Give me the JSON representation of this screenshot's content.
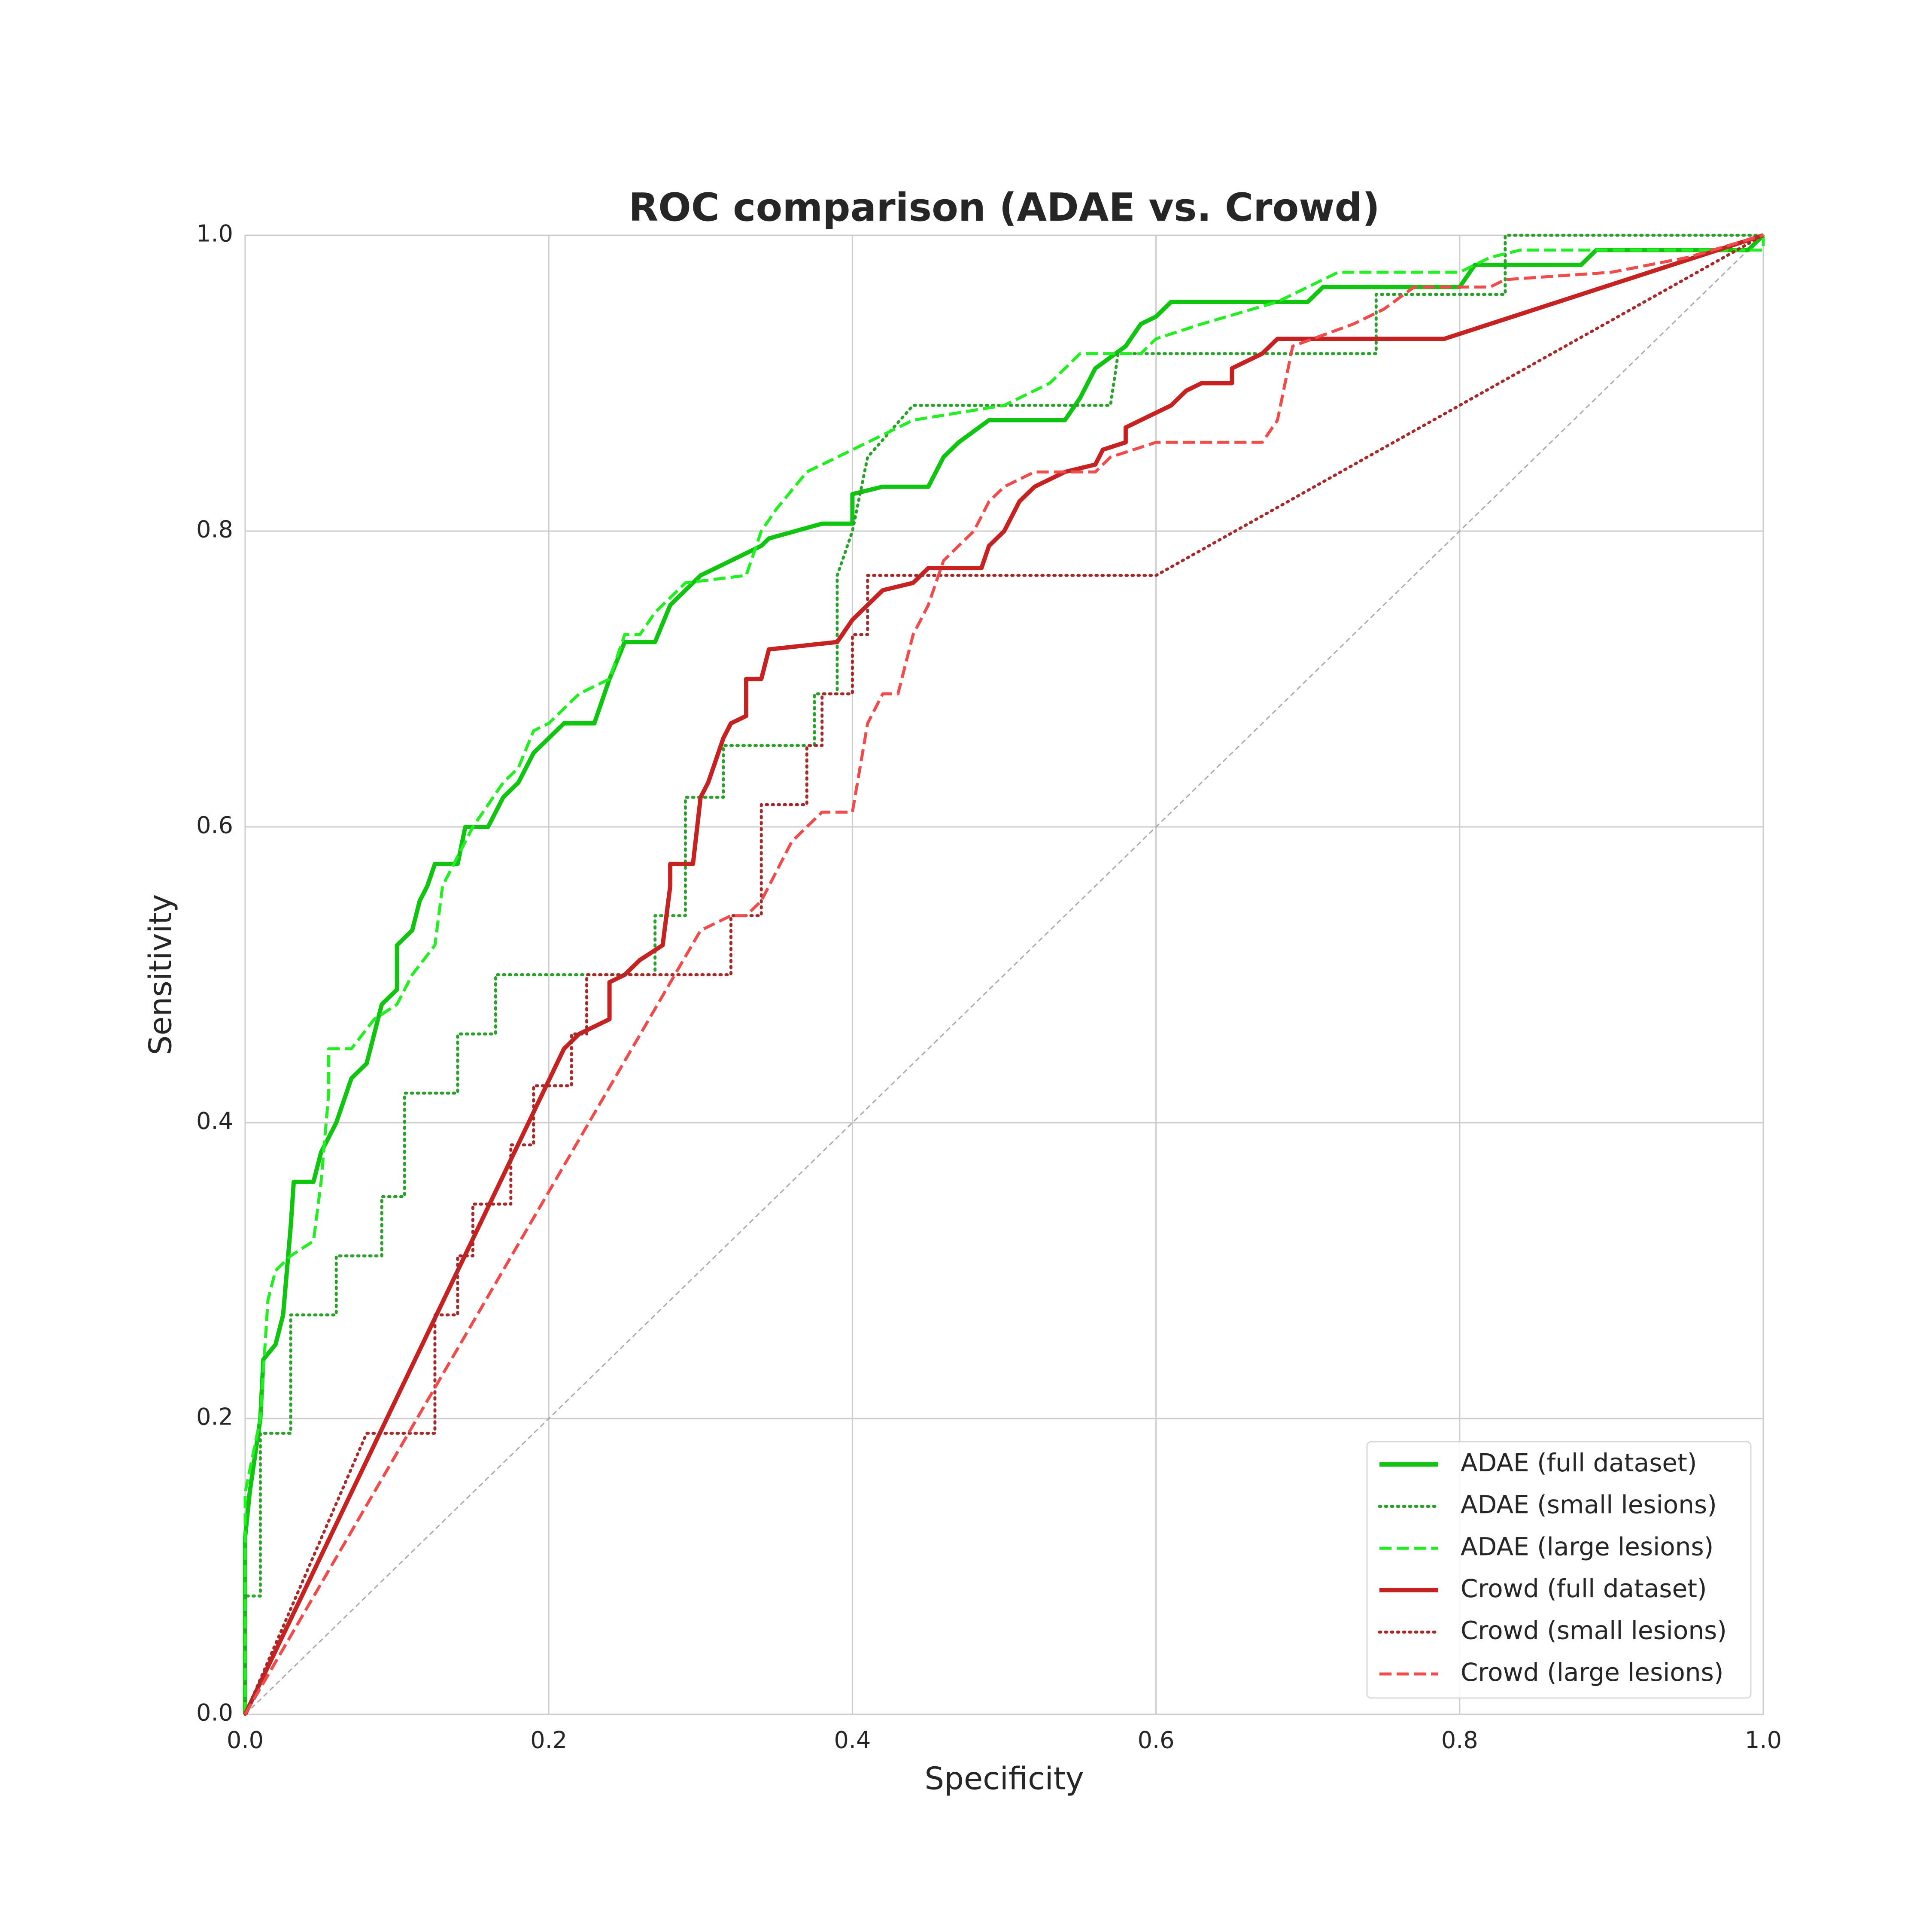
{
  "chart_data": {
    "type": "line",
    "title": "ROC comparison (ADAE vs. Crowd)",
    "x_label": "Specificity",
    "y_label": "Sensitivity",
    "xlim": [
      0,
      1
    ],
    "ylim": [
      0,
      1
    ],
    "xticks": [
      {
        "value": 0,
        "label": "0.0"
      },
      0.2,
      0.4,
      0.6,
      0.8,
      {
        "value": 1,
        "label": "1.0"
      }
    ],
    "yticks": [
      {
        "value": 0,
        "label": "0.0"
      },
      0.2,
      0.4,
      0.6,
      0.8,
      {
        "value": 1,
        "label": "1.0"
      }
    ],
    "grid": true,
    "legend": "lower right",
    "series": [
      {
        "name": "ADAE (full dataset)",
        "color": "#11c411",
        "linestyle": "solid",
        "x": [
          0,
          0,
          0.003,
          0.01,
          0.012,
          0.02,
          0.025,
          0.03,
          0.032,
          0.045,
          0.05,
          0.06,
          0.07,
          0.08,
          0.085,
          0.09,
          0.1,
          0.1,
          0.11,
          0.115,
          0.12,
          0.125,
          0.14,
          0.145,
          0.16,
          0.17,
          0.18,
          0.19,
          0.2,
          0.21,
          0.23,
          0.24,
          0.25,
          0.27,
          0.28,
          0.29,
          0.3,
          0.32,
          0.34,
          0.345,
          0.38,
          0.4,
          0.4,
          0.42,
          0.45,
          0.46,
          0.47,
          0.49,
          0.54,
          0.55,
          0.56,
          0.58,
          0.59,
          0.6,
          0.61,
          0.7,
          0.71,
          0.8,
          0.81,
          0.88,
          0.89,
          0.99,
          1
        ],
        "y": [
          0,
          0.12,
          0.15,
          0.2,
          0.24,
          0.25,
          0.27,
          0.33,
          0.36,
          0.36,
          0.38,
          0.4,
          0.43,
          0.44,
          0.46,
          0.48,
          0.49,
          0.52,
          0.53,
          0.55,
          0.56,
          0.575,
          0.575,
          0.6,
          0.6,
          0.62,
          0.63,
          0.65,
          0.66,
          0.67,
          0.67,
          0.7,
          0.725,
          0.725,
          0.75,
          0.76,
          0.77,
          0.78,
          0.79,
          0.795,
          0.805,
          0.805,
          0.825,
          0.83,
          0.83,
          0.85,
          0.86,
          0.875,
          0.875,
          0.89,
          0.91,
          0.925,
          0.94,
          0.945,
          0.955,
          0.955,
          0.965,
          0.965,
          0.98,
          0.98,
          0.99,
          0.99,
          1
        ]
      },
      {
        "name": "ADAE (small lesions)",
        "color": "#2ca02c",
        "linestyle": "dotted",
        "x": [
          0,
          0,
          0.01,
          0.01,
          0.03,
          0.03,
          0.06,
          0.06,
          0.09,
          0.09,
          0.105,
          0.105,
          0.14,
          0.14,
          0.165,
          0.165,
          0.27,
          0.27,
          0.29,
          0.29,
          0.315,
          0.315,
          0.375,
          0.375,
          0.39,
          0.39,
          0.4,
          0.41,
          0.44,
          0.57,
          0.575,
          0.745,
          0.745,
          0.83,
          0.83,
          1
        ],
        "y": [
          0,
          0.08,
          0.08,
          0.19,
          0.19,
          0.27,
          0.27,
          0.31,
          0.31,
          0.35,
          0.35,
          0.42,
          0.42,
          0.46,
          0.46,
          0.5,
          0.5,
          0.54,
          0.54,
          0.62,
          0.62,
          0.655,
          0.655,
          0.69,
          0.69,
          0.77,
          0.8,
          0.85,
          0.885,
          0.885,
          0.92,
          0.92,
          0.96,
          0.96,
          1,
          1
        ]
      },
      {
        "name": "ADAE (large lesions)",
        "color": "#22ee22",
        "linestyle": "dashed",
        "x": [
          0,
          0,
          0.01,
          0.015,
          0.02,
          0.03,
          0.045,
          0.05,
          0.055,
          0.055,
          0.07,
          0.085,
          0.1,
          0.11,
          0.125,
          0.13,
          0.14,
          0.15,
          0.17,
          0.18,
          0.19,
          0.2,
          0.22,
          0.24,
          0.25,
          0.26,
          0.27,
          0.29,
          0.33,
          0.34,
          0.35,
          0.37,
          0.39,
          0.42,
          0.44,
          0.5,
          0.53,
          0.55,
          0.59,
          0.6,
          0.63,
          0.68,
          0.72,
          0.8,
          0.82,
          0.84,
          1,
          1
        ],
        "y": [
          0,
          0.15,
          0.2,
          0.28,
          0.3,
          0.31,
          0.32,
          0.36,
          0.42,
          0.45,
          0.45,
          0.47,
          0.48,
          0.5,
          0.52,
          0.56,
          0.58,
          0.6,
          0.63,
          0.64,
          0.665,
          0.67,
          0.69,
          0.7,
          0.73,
          0.73,
          0.745,
          0.765,
          0.77,
          0.8,
          0.815,
          0.84,
          0.85,
          0.865,
          0.875,
          0.885,
          0.9,
          0.92,
          0.92,
          0.93,
          0.94,
          0.955,
          0.975,
          0.975,
          0.985,
          0.99,
          0.99,
          1
        ]
      },
      {
        "name": "Crowd (full dataset)",
        "color": "#c62222",
        "linestyle": "solid",
        "x": [
          0,
          0.21,
          0.22,
          0.23,
          0.24,
          0.24,
          0.25,
          0.26,
          0.275,
          0.28,
          0.28,
          0.295,
          0.3,
          0.305,
          0.31,
          0.315,
          0.32,
          0.33,
          0.33,
          0.34,
          0.345,
          0.39,
          0.4,
          0.41,
          0.42,
          0.44,
          0.45,
          0.485,
          0.49,
          0.5,
          0.51,
          0.52,
          0.54,
          0.56,
          0.565,
          0.58,
          0.58,
          0.6,
          0.61,
          0.62,
          0.63,
          0.65,
          0.65,
          0.67,
          0.68,
          0.79,
          1
        ],
        "y": [
          0,
          0.45,
          0.46,
          0.465,
          0.47,
          0.495,
          0.5,
          0.51,
          0.52,
          0.56,
          0.575,
          0.575,
          0.62,
          0.63,
          0.645,
          0.66,
          0.67,
          0.675,
          0.7,
          0.7,
          0.72,
          0.725,
          0.74,
          0.75,
          0.76,
          0.765,
          0.775,
          0.775,
          0.79,
          0.8,
          0.82,
          0.83,
          0.84,
          0.845,
          0.855,
          0.86,
          0.87,
          0.88,
          0.885,
          0.895,
          0.9,
          0.9,
          0.91,
          0.92,
          0.93,
          0.93,
          1
        ]
      },
      {
        "name": "Crowd (small lesions)",
        "color": "#a52a2a",
        "linestyle": "dotted",
        "x": [
          0,
          0.08,
          0.125,
          0.125,
          0.14,
          0.14,
          0.15,
          0.15,
          0.175,
          0.175,
          0.19,
          0.19,
          0.215,
          0.215,
          0.225,
          0.225,
          0.32,
          0.32,
          0.34,
          0.34,
          0.34,
          0.37,
          0.37,
          0.38,
          0.38,
          0.4,
          0.4,
          0.41,
          0.41,
          0.6,
          1
        ],
        "y": [
          0,
          0.19,
          0.19,
          0.27,
          0.27,
          0.31,
          0.31,
          0.345,
          0.345,
          0.385,
          0.385,
          0.425,
          0.425,
          0.46,
          0.46,
          0.5,
          0.5,
          0.54,
          0.54,
          0.58,
          0.615,
          0.615,
          0.655,
          0.655,
          0.69,
          0.69,
          0.73,
          0.73,
          0.77,
          0.77,
          1
        ]
      },
      {
        "name": "Crowd (large lesions)",
        "color": "#f04c4c",
        "linestyle": "dashed",
        "x": [
          0,
          0.3,
          0.32,
          0.33,
          0.34,
          0.35,
          0.36,
          0.37,
          0.38,
          0.4,
          0.41,
          0.42,
          0.43,
          0.44,
          0.45,
          0.46,
          0.47,
          0.48,
          0.49,
          0.5,
          0.52,
          0.56,
          0.57,
          0.6,
          0.67,
          0.68,
          0.685,
          0.69,
          0.73,
          0.75,
          0.77,
          0.82,
          0.83,
          0.9,
          0.95,
          1
        ],
        "y": [
          0,
          0.53,
          0.54,
          0.54,
          0.55,
          0.57,
          0.59,
          0.6,
          0.61,
          0.61,
          0.67,
          0.69,
          0.69,
          0.73,
          0.75,
          0.78,
          0.79,
          0.8,
          0.82,
          0.83,
          0.84,
          0.84,
          0.85,
          0.86,
          0.86,
          0.875,
          0.9,
          0.925,
          0.94,
          0.95,
          0.965,
          0.965,
          0.97,
          0.975,
          0.985,
          1
        ]
      }
    ]
  }
}
